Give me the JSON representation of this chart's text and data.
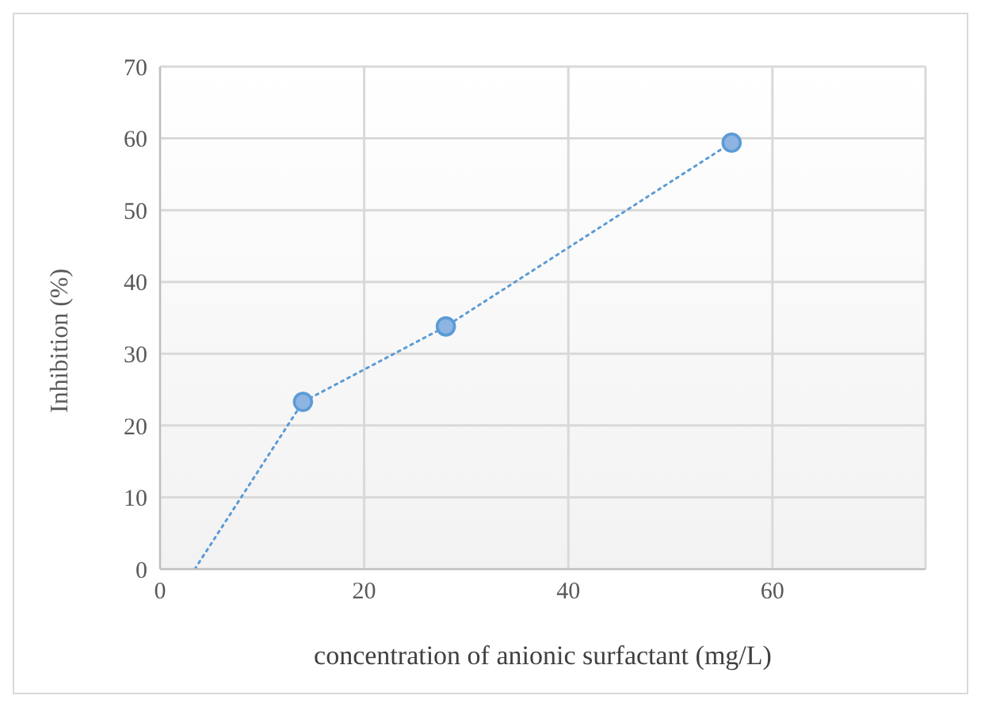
{
  "chart_data": {
    "type": "line",
    "xlabel": "concentration of anionic  surfactant (mg/L)",
    "ylabel": "Inhibition (%)",
    "xlim": [
      0,
      75
    ],
    "xticks": [
      0,
      20,
      40,
      60
    ],
    "ylim": [
      0,
      70
    ],
    "yticks": [
      0,
      10,
      20,
      30,
      40,
      50,
      60,
      70
    ],
    "grid": true,
    "legend": false,
    "series": [
      {
        "type": "line",
        "color": "#5b9bd5",
        "x": [
          3.4,
          14,
          28,
          56
        ],
        "values": [
          0,
          23.3,
          33.8,
          59.4
        ],
        "marker": "none",
        "line_style": "dotted"
      },
      {
        "type": "scatter",
        "color": "#5b9bd5",
        "x": [
          14,
          28,
          56
        ],
        "values": [
          23.3,
          33.8,
          59.4
        ],
        "marker": "circle"
      }
    ]
  }
}
